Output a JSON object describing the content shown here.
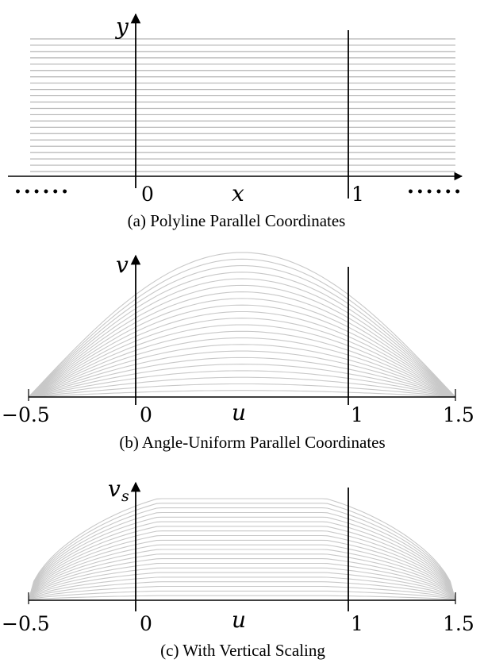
{
  "panels": [
    {
      "id": "a",
      "caption": "(a) Polyline Parallel Coordinates",
      "y_axis_label": "y",
      "x_axis_label": "x",
      "tick_labels": [
        "0",
        "1"
      ],
      "left_ellipsis": "• • • • • •",
      "right_ellipsis": "• • • • • •",
      "num_lines": 22,
      "line_color": "#b4b4b4"
    },
    {
      "id": "b",
      "caption": "(b) Angle-Uniform Parallel Coordinates",
      "y_axis_label": "v",
      "x_axis_label": "u",
      "tick_labels": [
        "−0.5",
        "0",
        "1",
        "1.5"
      ],
      "num_lines": 22,
      "line_color": "#c8c8c8"
    },
    {
      "id": "c",
      "caption": "(c) With Vertical Scaling",
      "y_axis_label": "v",
      "y_axis_subscript": "s",
      "x_axis_label": "u",
      "tick_labels": [
        "−0.5",
        "0",
        "1",
        "1.5"
      ],
      "num_lines": 22,
      "line_color": "#c8c8c8"
    }
  ]
}
